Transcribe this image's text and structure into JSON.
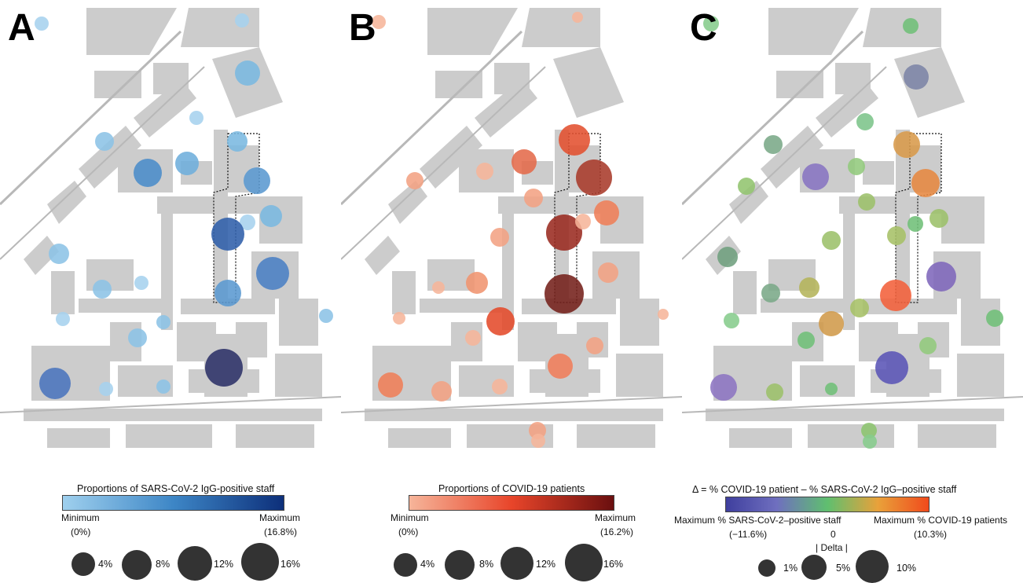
{
  "panels": [
    {
      "letter": "A",
      "kind": "staff",
      "legend": {
        "title": "Proportions of SARS-CoV-2 IgG-positive staff",
        "min_label": "Minimum",
        "min_value": "(0%)",
        "max_label": "Maximum",
        "max_value": "(16.8%)",
        "gradient": [
          "#9fd0ee",
          "#3d86c6",
          "#0d2f7a"
        ],
        "sizes": [
          "4%",
          "8%",
          "12%",
          "16%"
        ]
      }
    },
    {
      "letter": "B",
      "kind": "patients",
      "legend": {
        "title": "Proportions of COVID-19 patients",
        "min_label": "Minimum",
        "min_value": "(0%)",
        "max_label": "Maximum",
        "max_value": "(16.2%)",
        "gradient": [
          "#f6b59a",
          "#e8452a",
          "#6a0f0f"
        ],
        "sizes": [
          "4%",
          "8%",
          "12%",
          "16%"
        ]
      }
    },
    {
      "letter": "C",
      "kind": "delta",
      "legend": {
        "title": "Δ = % COVID-19 patient – % SARS-CoV-2 IgG–positive staff",
        "left_label": "Maximum % SARS-CoV-2–positive staff",
        "left_value": "(−11.6%)",
        "center_value": "0",
        "right_label": "Maximum % COVID-19 patients",
        "right_value": "(10.3%)",
        "delta_label": "| Delta |",
        "gradient": [
          "#3f3f9e",
          "#6f6fbf",
          "#5fbf6f",
          "#e9a13a",
          "#f04a1c"
        ],
        "sizes": [
          "1%",
          "5%",
          "10%"
        ]
      }
    }
  ],
  "colors": {
    "building": "#cccccc",
    "background": "#ffffff",
    "outline": "#111111"
  }
}
